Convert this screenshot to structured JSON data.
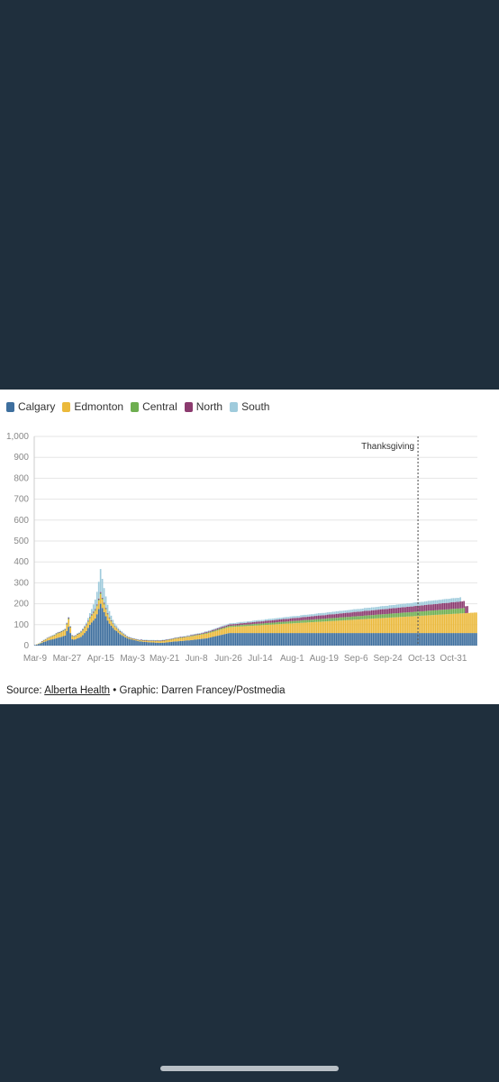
{
  "source": {
    "prefix": "Source: ",
    "link_text": "Alberta Health",
    "suffix": " • Graphic: Darren Francey/Postmedia"
  },
  "chart_data": {
    "type": "bar",
    "stacked": true,
    "legend": [
      {
        "name": "Calgary",
        "color": "#3e6f9e"
      },
      {
        "name": "Edmonton",
        "color": "#ebb93b"
      },
      {
        "name": "Central",
        "color": "#6eae50"
      },
      {
        "name": "North",
        "color": "#8b3a6e"
      },
      {
        "name": "South",
        "color": "#9fcbdc"
      }
    ],
    "ylim": [
      0,
      1000
    ],
    "yticks": [
      0,
      100,
      200,
      300,
      400,
      500,
      600,
      700,
      800,
      900,
      1000
    ],
    "ytick_labels": [
      "0",
      "100",
      "200",
      "300",
      "400",
      "500",
      "600",
      "700",
      "800",
      "900",
      "1,000"
    ],
    "xtick_labels": [
      "Mar-9",
      "Mar-27",
      "Apr-15",
      "May-3",
      "May-21",
      "Jun-8",
      "Jun-26",
      "Jul-14",
      "Aug-1",
      "Aug-19",
      "Sep-6",
      "Sep-24",
      "Oct-13",
      "Oct-31"
    ],
    "xtick_day_index": [
      0,
      18,
      37,
      55,
      73,
      91,
      109,
      127,
      145,
      163,
      181,
      199,
      218,
      236
    ],
    "annotation": {
      "text": "Thanksgiving",
      "day_index": 216
    },
    "series": [
      {
        "name": "Calgary",
        "values": [
          3,
          5,
          8,
          10,
          14,
          18,
          20,
          24,
          26,
          28,
          30,
          32,
          35,
          38,
          40,
          42,
          45,
          48,
          70,
          90,
          60,
          30,
          28,
          30,
          35,
          38,
          42,
          50,
          60,
          70,
          85,
          100,
          110,
          120,
          130,
          150,
          175,
          200,
          180,
          160,
          140,
          120,
          105,
          95,
          85,
          75,
          70,
          62,
          55,
          50,
          45,
          40,
          36,
          32,
          30,
          28,
          26,
          24,
          22,
          20,
          20,
          18,
          18,
          17,
          16,
          16,
          15,
          15,
          14,
          14,
          13,
          13,
          14,
          14,
          15,
          16,
          17,
          18,
          19,
          20,
          20,
          21,
          22,
          22,
          23,
          24,
          25,
          25,
          26,
          27,
          28,
          29,
          30,
          31,
          32,
          33,
          34,
          35,
          37,
          39,
          41,
          43,
          45,
          47,
          49,
          51,
          53,
          55,
          57,
          59,
          60,
          60,
          60,
          60,
          60,
          60,
          60,
          60,
          60,
          60,
          60,
          60,
          60,
          60,
          60,
          60,
          60,
          60,
          60,
          60,
          60,
          60,
          60,
          60,
          60,
          60,
          60,
          60,
          60,
          60,
          60,
          60,
          60,
          60,
          60,
          60,
          60,
          60,
          60,
          60,
          60,
          60,
          60,
          60,
          60,
          60,
          60,
          60,
          60,
          60,
          60,
          60,
          60,
          60,
          60,
          60,
          60,
          60,
          60,
          60,
          60,
          60,
          60,
          60,
          60,
          60,
          60,
          60,
          60,
          60,
          60,
          60,
          60,
          60,
          60,
          60,
          60,
          60,
          60,
          60,
          60,
          60,
          60,
          60,
          60,
          60,
          60,
          60,
          60,
          60,
          60,
          60,
          60,
          60,
          60,
          60,
          60,
          60,
          60,
          60,
          60,
          60,
          60,
          60,
          60,
          60,
          60,
          60,
          60,
          60,
          60,
          60,
          60,
          60,
          60,
          60,
          60,
          60,
          60,
          60,
          60,
          60,
          60,
          60,
          60,
          60,
          60,
          60,
          60,
          60,
          60,
          60,
          60,
          60,
          60,
          60,
          60,
          60,
          60,
          60
        ]
      },
      {
        "name": "Edmonton",
        "values": [
          0,
          1,
          2,
          3,
          5,
          7,
          9,
          10,
          12,
          14,
          15,
          16,
          18,
          20,
          20,
          22,
          24,
          25,
          30,
          35,
          25,
          15,
          14,
          15,
          17,
          18,
          20,
          22,
          24,
          26,
          28,
          30,
          32,
          34,
          36,
          38,
          40,
          45,
          40,
          36,
          32,
          28,
          24,
          20,
          17,
          15,
          13,
          11,
          10,
          9,
          8,
          7,
          6,
          6,
          5,
          5,
          5,
          5,
          5,
          5,
          6,
          6,
          6,
          7,
          7,
          7,
          8,
          8,
          8,
          9,
          9,
          9,
          10,
          10,
          11,
          11,
          12,
          12,
          13,
          13,
          14,
          14,
          15,
          15,
          16,
          16,
          17,
          17,
          18,
          18,
          19,
          19,
          20,
          20,
          21,
          21,
          22,
          22,
          23,
          23,
          24,
          24,
          25,
          25,
          26,
          26,
          27,
          27,
          28,
          28,
          29,
          29,
          30,
          30,
          31,
          31,
          32,
          32,
          33,
          33,
          34,
          34,
          35,
          35,
          36,
          36,
          37,
          37,
          38,
          38,
          39,
          39,
          40,
          40,
          41,
          41,
          42,
          42,
          43,
          43,
          44,
          44,
          45,
          45,
          46,
          46,
          47,
          47,
          48,
          48,
          49,
          49,
          50,
          50,
          51,
          51,
          52,
          52,
          53,
          53,
          54,
          54,
          55,
          55,
          56,
          56,
          57,
          57,
          58,
          58,
          59,
          59,
          60,
          60,
          61,
          61,
          62,
          62,
          63,
          63,
          64,
          64,
          65,
          65,
          66,
          66,
          67,
          67,
          68,
          68,
          69,
          69,
          70,
          70,
          71,
          71,
          72,
          72,
          73,
          73,
          74,
          74,
          75,
          75,
          76,
          76,
          77,
          77,
          78,
          78,
          79,
          79,
          80,
          80,
          81,
          81,
          82,
          82,
          83,
          83,
          84,
          84,
          85,
          85,
          86,
          86,
          87,
          87,
          88,
          88,
          89,
          89,
          90,
          90,
          91,
          91,
          92,
          92,
          93,
          93,
          94,
          94,
          95,
          95,
          96,
          96,
          97,
          97,
          98,
          98,
          99,
          99,
          100,
          100
        ]
      },
      {
        "name": "Central",
        "values": [
          0,
          0,
          0,
          1,
          1,
          1,
          1,
          2,
          2,
          2,
          2,
          2,
          3,
          3,
          3,
          3,
          3,
          3,
          4,
          4,
          3,
          2,
          2,
          2,
          2,
          2,
          3,
          3,
          3,
          3,
          4,
          4,
          4,
          4,
          5,
          5,
          5,
          6,
          5,
          5,
          4,
          4,
          3,
          3,
          3,
          2,
          2,
          2,
          2,
          2,
          2,
          2,
          1,
          1,
          1,
          1,
          1,
          1,
          1,
          1,
          1,
          1,
          1,
          1,
          1,
          1,
          1,
          1,
          1,
          1,
          1,
          1,
          1,
          1,
          1,
          1,
          1,
          1,
          1,
          2,
          2,
          2,
          2,
          2,
          2,
          2,
          2,
          2,
          3,
          3,
          3,
          3,
          3,
          3,
          3,
          3,
          4,
          4,
          4,
          4,
          4,
          4,
          4,
          5,
          5,
          5,
          5,
          5,
          5,
          6,
          6,
          6,
          6,
          6,
          6,
          6,
          7,
          7,
          7,
          7,
          7,
          7,
          7,
          8,
          8,
          8,
          8,
          8,
          8,
          8,
          9,
          9,
          9,
          9,
          9,
          9,
          9,
          10,
          10,
          10,
          10,
          10,
          10,
          10,
          11,
          11,
          11,
          11,
          11,
          11,
          11,
          12,
          12,
          12,
          12,
          12,
          12,
          12,
          13,
          13,
          13,
          13,
          13,
          13,
          13,
          14,
          14,
          14,
          14,
          14,
          14,
          14,
          15,
          15,
          15,
          15,
          15,
          15,
          15,
          16,
          16,
          16,
          16,
          16,
          16,
          16,
          17,
          17,
          17,
          17,
          17,
          17,
          17,
          18,
          18,
          18,
          18,
          18,
          18,
          18,
          19,
          19,
          19,
          19,
          19,
          19,
          19,
          20,
          20,
          20,
          20,
          20,
          20,
          20,
          21,
          21,
          21,
          21,
          21,
          21,
          21,
          22,
          22,
          22,
          22,
          22,
          22,
          22,
          23,
          23,
          23,
          23,
          23,
          23,
          23,
          24,
          24,
          24,
          24,
          24,
          24,
          24,
          25
        ]
      },
      {
        "name": "North",
        "values": [
          0,
          0,
          0,
          0,
          1,
          1,
          1,
          1,
          1,
          1,
          2,
          2,
          2,
          2,
          2,
          2,
          2,
          3,
          3,
          4,
          3,
          2,
          2,
          2,
          2,
          2,
          2,
          3,
          3,
          3,
          3,
          3,
          4,
          4,
          4,
          4,
          5,
          5,
          4,
          4,
          4,
          3,
          3,
          3,
          2,
          2,
          2,
          2,
          2,
          2,
          2,
          1,
          1,
          1,
          1,
          1,
          1,
          1,
          1,
          1,
          1,
          1,
          1,
          1,
          1,
          1,
          1,
          1,
          1,
          1,
          1,
          1,
          1,
          1,
          1,
          1,
          1,
          1,
          1,
          2,
          2,
          2,
          2,
          2,
          2,
          2,
          2,
          2,
          3,
          3,
          3,
          3,
          3,
          3,
          3,
          4,
          4,
          4,
          4,
          4,
          5,
          5,
          5,
          5,
          5,
          6,
          6,
          6,
          6,
          6,
          7,
          7,
          7,
          7,
          7,
          8,
          8,
          8,
          8,
          8,
          9,
          9,
          9,
          9,
          9,
          10,
          10,
          10,
          10,
          10,
          11,
          11,
          11,
          11,
          11,
          12,
          12,
          12,
          12,
          12,
          13,
          13,
          13,
          13,
          13,
          14,
          14,
          14,
          14,
          14,
          15,
          15,
          15,
          15,
          15,
          16,
          16,
          16,
          16,
          16,
          17,
          17,
          17,
          17,
          17,
          18,
          18,
          18,
          18,
          18,
          19,
          19,
          19,
          19,
          19,
          20,
          20,
          20,
          20,
          20,
          21,
          21,
          21,
          21,
          21,
          22,
          22,
          22,
          22,
          22,
          23,
          23,
          23,
          23,
          23,
          24,
          24,
          24,
          24,
          24,
          25,
          25,
          25,
          25,
          25,
          26,
          26,
          26,
          26,
          26,
          27,
          27,
          27,
          27,
          27,
          28,
          28,
          28,
          28,
          28,
          29,
          29,
          29,
          29,
          29,
          30,
          30,
          30,
          30,
          30,
          31,
          31,
          31,
          31,
          31,
          32,
          32,
          32,
          32,
          32,
          33,
          33,
          33,
          33,
          33
        ]
      },
      {
        "name": "South",
        "values": [
          0,
          0,
          0,
          0,
          0,
          1,
          1,
          1,
          1,
          1,
          1,
          1,
          2,
          2,
          2,
          2,
          2,
          2,
          3,
          4,
          3,
          2,
          2,
          2,
          3,
          3,
          4,
          5,
          6,
          8,
          12,
          18,
          25,
          35,
          45,
          60,
          80,
          110,
          90,
          70,
          55,
          40,
          30,
          22,
          16,
          12,
          9,
          7,
          6,
          5,
          4,
          4,
          3,
          3,
          3,
          2,
          2,
          2,
          2,
          2,
          2,
          2,
          2,
          2,
          2,
          2,
          2,
          2,
          2,
          2,
          2,
          2,
          2,
          2,
          2,
          2,
          2,
          2,
          2,
          2,
          2,
          2,
          2,
          2,
          2,
          2,
          3,
          3,
          3,
          3,
          3,
          3,
          3,
          3,
          3,
          3,
          4,
          4,
          4,
          4,
          4,
          4,
          4,
          4,
          4,
          5,
          5,
          5,
          5,
          5,
          5,
          5,
          5,
          5,
          6,
          6,
          6,
          6,
          6,
          6,
          6,
          6,
          6,
          7,
          7,
          7,
          7,
          7,
          7,
          7,
          7,
          7,
          8,
          8,
          8,
          8,
          8,
          8,
          8,
          8,
          8,
          9,
          9,
          9,
          9,
          9,
          9,
          9,
          9,
          9,
          10,
          10,
          10,
          10,
          10,
          10,
          10,
          10,
          10,
          11,
          11,
          11,
          11,
          11,
          11,
          11,
          11,
          11,
          12,
          12,
          12,
          12,
          12,
          12,
          12,
          12,
          12,
          13,
          13,
          13,
          13,
          13,
          13,
          13,
          13,
          13,
          14,
          14,
          14,
          14,
          14,
          14,
          14,
          14,
          14,
          15,
          15,
          15,
          15,
          15,
          15,
          15,
          15,
          15,
          16,
          16,
          16,
          16,
          16,
          16,
          16,
          16,
          16,
          17,
          17,
          17,
          17,
          17,
          17,
          17,
          17,
          17,
          18,
          18,
          18,
          18,
          18,
          18,
          18,
          18,
          18,
          19,
          19,
          19,
          19,
          19,
          19,
          19,
          19,
          19,
          20
        ]
      }
    ]
  }
}
